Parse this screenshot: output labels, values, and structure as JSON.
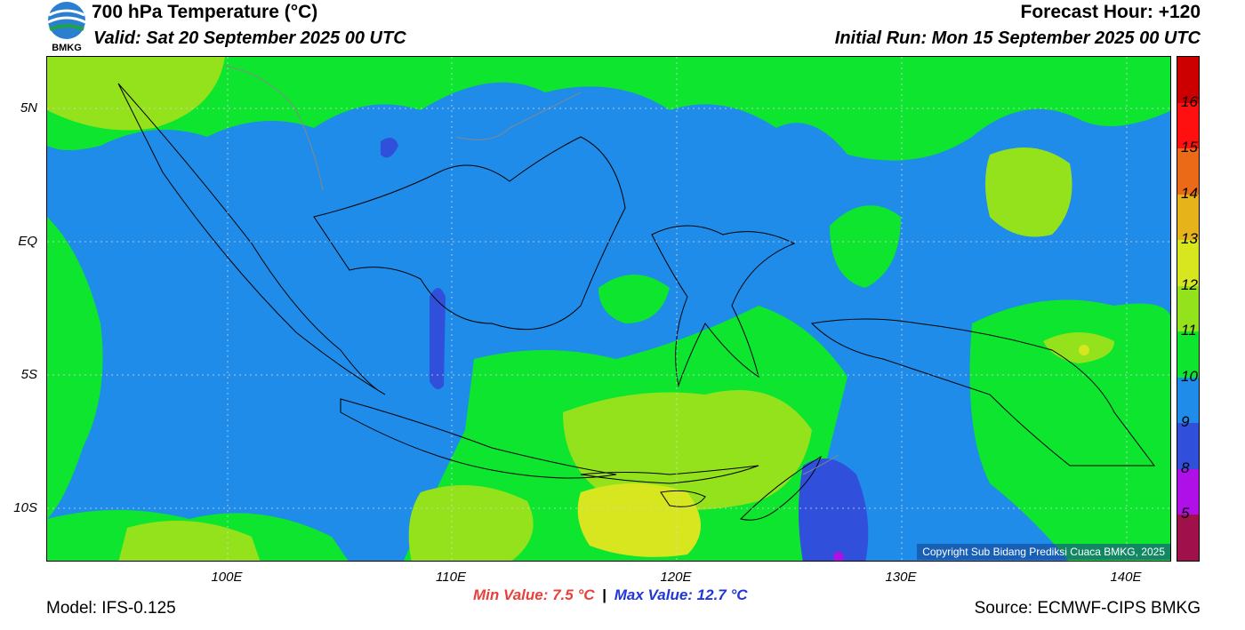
{
  "header": {
    "logo_text": "BMKG",
    "title": "700 hPa Temperature (°C)",
    "valid": "Valid: Sat 20 September 2025 00 UTC",
    "forecast_hour": "Forecast Hour: +120",
    "initial_run": "Initial Run: Mon 15 September 2025 00 UTC"
  },
  "axes": {
    "lat_labels": [
      "5N",
      "EQ",
      "5S",
      "10S"
    ],
    "lon_labels": [
      "100E",
      "110E",
      "120E",
      "130E",
      "140E"
    ]
  },
  "colorbar": {
    "levels": [
      {
        "label": "16",
        "color": "#cc0000"
      },
      {
        "label": "15",
        "color": "#ff1010"
      },
      {
        "label": "14",
        "color": "#ea6a18"
      },
      {
        "label": "13",
        "color": "#e6b41a"
      },
      {
        "label": "12",
        "color": "#d7e61e"
      },
      {
        "label": "11",
        "color": "#94e21c"
      },
      {
        "label": "10",
        "color": "#0ee52e"
      },
      {
        "label": "9",
        "color": "#1e8ce8"
      },
      {
        "label": "8",
        "color": "#3050dc"
      },
      {
        "label": "5",
        "color": "#b010e8"
      }
    ],
    "bottom_color": "#a0104a"
  },
  "stats": {
    "min_value": "Min Value: 7.5 °C",
    "separator": "|",
    "max_value": "Max Value: 12.7 °C"
  },
  "copyright": "Copyright Sub Bidang Prediksi Cuaca BMKG, 2025",
  "footer": {
    "model": "Model: IFS-0.125",
    "source": "Source: ECMWF-CIPS BMKG"
  }
}
